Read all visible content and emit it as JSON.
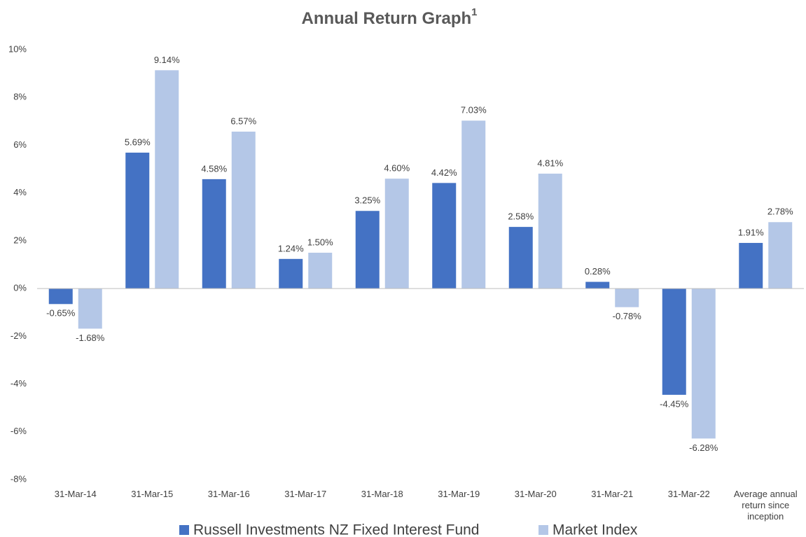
{
  "chart_data": {
    "type": "bar",
    "title": "Annual Return Graph",
    "title_note": "1",
    "categories": [
      "31-Mar-14",
      "31-Mar-15",
      "31-Mar-16",
      "31-Mar-17",
      "31-Mar-18",
      "31-Mar-19",
      "31-Mar-20",
      "31-Mar-21",
      "31-Mar-22",
      "Average annual return since inception"
    ],
    "series": [
      {
        "name": "Russell Investments NZ Fixed Interest Fund",
        "color": "#4472c4",
        "values": [
          -0.65,
          5.69,
          4.58,
          1.24,
          3.25,
          4.42,
          2.58,
          0.28,
          -4.45,
          1.91
        ],
        "value_labels": [
          "-0.65%",
          "5.69%",
          "4.58%",
          "1.24%",
          "3.25%",
          "4.42%",
          "2.58%",
          "0.28%",
          "-4.45%",
          "1.91%"
        ]
      },
      {
        "name": "Market Index",
        "color": "#b4c7e7",
        "values": [
          -1.68,
          9.14,
          6.57,
          1.5,
          4.6,
          7.03,
          4.81,
          -0.78,
          -6.28,
          2.78
        ],
        "value_labels": [
          "-1.68%",
          "9.14%",
          "6.57%",
          "1.50%",
          "4.60%",
          "7.03%",
          "4.81%",
          "-0.78%",
          "-6.28%",
          "2.78%"
        ]
      }
    ],
    "ylim": [
      -8,
      10
    ],
    "yticks": [
      {
        "value": -8,
        "label": "-8%"
      },
      {
        "value": -6,
        "label": "-6%"
      },
      {
        "value": -4,
        "label": "-4%"
      },
      {
        "value": -2,
        "label": "-2%"
      },
      {
        "value": 0,
        "label": "0%"
      },
      {
        "value": 2,
        "label": "2%"
      },
      {
        "value": 4,
        "label": "4%"
      },
      {
        "value": 6,
        "label": "6%"
      },
      {
        "value": 8,
        "label": "8%"
      },
      {
        "value": 10,
        "label": "10%"
      }
    ],
    "grid": false,
    "legend": "bottom"
  }
}
